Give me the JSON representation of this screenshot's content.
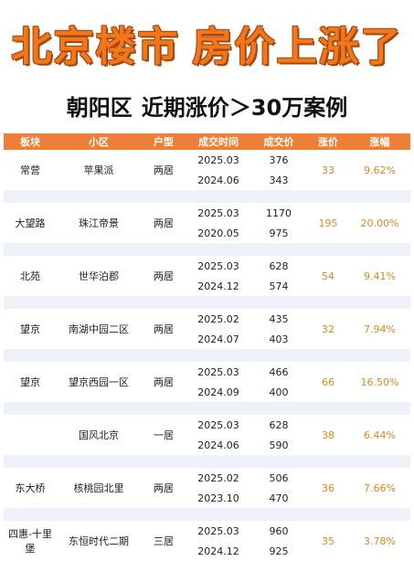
{
  "headline": {
    "part_a": "北京楼市",
    "part_b": "房价上涨了"
  },
  "subtitle": {
    "district": "朝阳区",
    "text": "近期涨价＞30万案例"
  },
  "table": {
    "headers": [
      "板块",
      "小区",
      "户型",
      "成交时间",
      "成交价",
      "涨价",
      "涨幅"
    ],
    "rows": [
      {
        "area": "常营",
        "estate": "苹果派",
        "type": "两居",
        "date_new": "2025.03",
        "price_new": "376",
        "date_old": "2024.06",
        "price_old": "343",
        "gain": "33",
        "rate": "9.62%"
      },
      {
        "area": "大望路",
        "estate": "珠江帝景",
        "type": "两居",
        "date_new": "2025.03",
        "price_new": "1170",
        "date_old": "2020.05",
        "price_old": "975",
        "gain": "195",
        "rate": "20.00%"
      },
      {
        "area": "北苑",
        "estate": "世华泊郡",
        "type": "两居",
        "date_new": "2025.03",
        "price_new": "628",
        "date_old": "2024.12",
        "price_old": "574",
        "gain": "54",
        "rate": "9.41%"
      },
      {
        "area": "望京",
        "estate": "南湖中园二区",
        "type": "两居",
        "date_new": "2025.02",
        "price_new": "435",
        "date_old": "2024.07",
        "price_old": "403",
        "gain": "32",
        "rate": "7.94%"
      },
      {
        "area": "望京",
        "estate": "望京西园一区",
        "type": "两居",
        "date_new": "2025.03",
        "price_new": "466",
        "date_old": "2024.09",
        "price_old": "400",
        "gain": "66",
        "rate": "16.50%"
      },
      {
        "area": "",
        "estate": "国风北京",
        "type": "一居",
        "date_new": "2025.03",
        "price_new": "628",
        "date_old": "2024.06",
        "price_old": "590",
        "gain": "38",
        "rate": "6.44%"
      },
      {
        "area": "东大桥",
        "estate": "核桃园北里",
        "type": "两居",
        "date_new": "2025.02",
        "price_new": "506",
        "date_old": "2023.10",
        "price_old": "470",
        "gain": "36",
        "rate": "7.66%"
      },
      {
        "area": "四惠-十里堡",
        "estate": "东恒时代二期",
        "type": "三居",
        "date_new": "2025.03",
        "price_new": "960",
        "date_old": "2024.12",
        "price_old": "925",
        "gain": "35",
        "rate": "3.78%"
      }
    ]
  }
}
